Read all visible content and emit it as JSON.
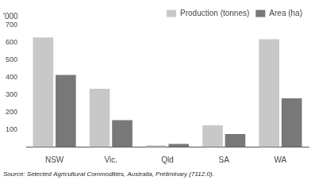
{
  "chart_data": {
    "type": "bar",
    "categories": [
      "NSW",
      "Vic.",
      "Qld",
      "SA",
      "WA"
    ],
    "series": [
      {
        "name": "Production (tonnes)",
        "color": "#c8c8c8",
        "values": [
          630,
          335,
          10,
          125,
          620
        ]
      },
      {
        "name": "Area (ha)",
        "color": "#787878",
        "values": [
          415,
          155,
          18,
          75,
          280
        ]
      }
    ],
    "ylabel": "'000",
    "annotations": [
      "Source: Selected Agricultural Commodities, Australia, Preliminary (7112.0)."
    ],
    "ylim": [
      0,
      700
    ],
    "yticks": [
      100,
      200,
      300,
      400,
      500,
      600,
      700
    ],
    "grid": false,
    "legend": "upper right"
  }
}
